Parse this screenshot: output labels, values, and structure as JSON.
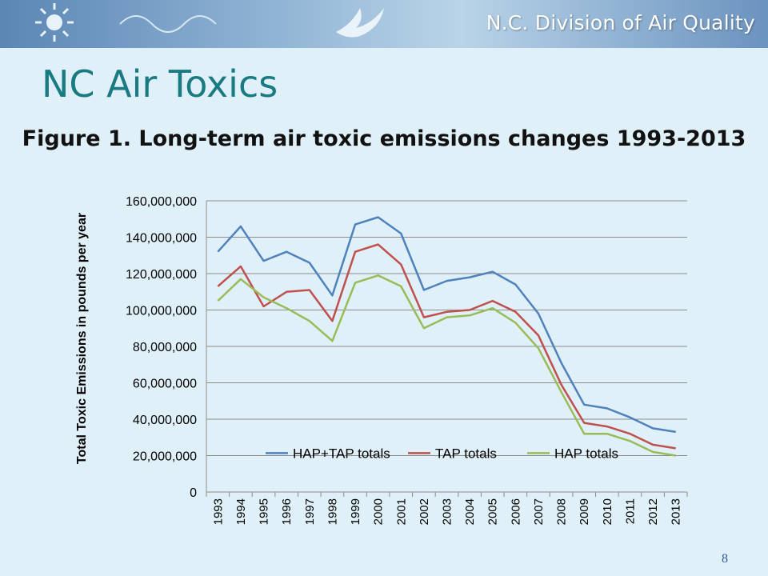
{
  "header": {
    "org_name": "N.C. Division of Air Quality",
    "slide_title": "NC Air Toxics",
    "figure_title": "Figure 1. Long-term air toxic emissions changes 1993-2013"
  },
  "footer": {
    "page_number": "8"
  },
  "colors": {
    "hap_tap": "#4f81bd",
    "tap": "#c0504d",
    "hap": "#9bbb59",
    "slide_title": "#1a7a82",
    "background": "#dff0f8"
  },
  "chart_data": {
    "type": "line",
    "title": "",
    "xlabel": "",
    "ylabel": "Total Toxic Emissions in pounds per year",
    "x": [
      "1993",
      "1994",
      "1995",
      "1996",
      "1997",
      "1998",
      "1999",
      "2000",
      "2001",
      "2002",
      "2003",
      "2004",
      "2005",
      "2006",
      "2007",
      "2008",
      "2009",
      "2010",
      "2011",
      "2012",
      "2013"
    ],
    "ylim": [
      0,
      160000000
    ],
    "y_ticks": [
      "0",
      "20,000,000",
      "40,000,000",
      "60,000,000",
      "80,000,000",
      "100,000,000",
      "120,000,000",
      "140,000,000",
      "160,000,000"
    ],
    "grid": true,
    "legend_position": "bottom-center",
    "series": [
      {
        "name": "HAP+TAP totals",
        "color": "#4f81bd",
        "values": [
          132000000,
          146000000,
          127000000,
          132000000,
          126000000,
          108000000,
          147000000,
          151000000,
          142000000,
          111000000,
          116000000,
          118000000,
          121000000,
          114000000,
          98000000,
          71000000,
          48000000,
          46000000,
          41000000,
          35000000,
          33000000
        ]
      },
      {
        "name": "TAP totals",
        "color": "#c0504d",
        "values": [
          113000000,
          124000000,
          102000000,
          110000000,
          111000000,
          94000000,
          132000000,
          136000000,
          125000000,
          96000000,
          99000000,
          100000000,
          105000000,
          99000000,
          86000000,
          59000000,
          38000000,
          36000000,
          32000000,
          26000000,
          24000000
        ]
      },
      {
        "name": "HAP totals",
        "color": "#9bbb59",
        "values": [
          105000000,
          117000000,
          107000000,
          101000000,
          94000000,
          83000000,
          115000000,
          119000000,
          113000000,
          90000000,
          96000000,
          97000000,
          101000000,
          93000000,
          79000000,
          55000000,
          32000000,
          32000000,
          28000000,
          22000000,
          20000000
        ]
      }
    ]
  }
}
